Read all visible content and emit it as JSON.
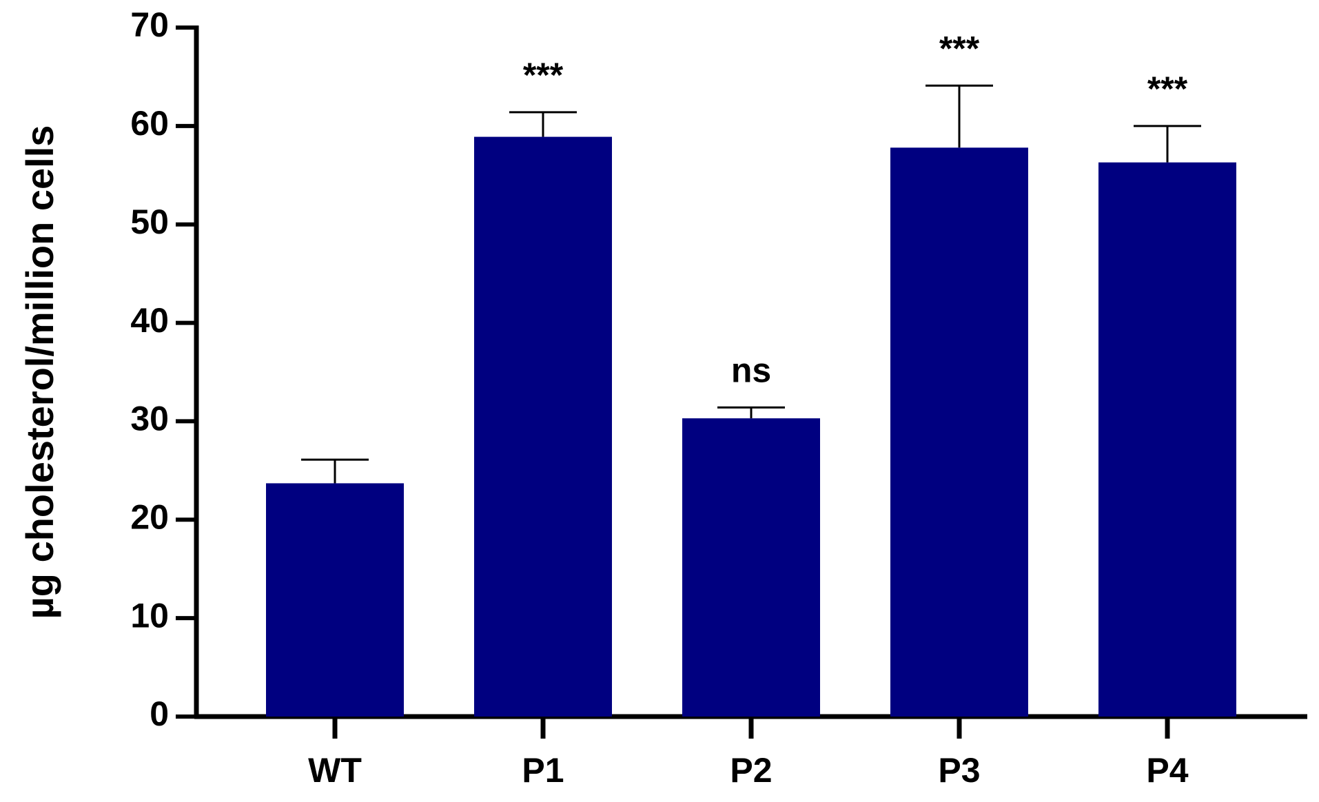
{
  "chart_data": {
    "type": "bar",
    "y_label": "µg cholesterol/million cells",
    "categories": [
      "WT",
      "P1",
      "P2",
      "P3",
      "P4"
    ],
    "values": [
      23.7,
      58.9,
      30.3,
      57.8,
      56.3
    ],
    "errors": [
      2.4,
      2.5,
      1.1,
      6.3,
      3.7
    ],
    "annotations": [
      null,
      "***",
      "ns",
      "***",
      "***"
    ],
    "color": "#000080",
    "ylim": [
      0,
      70
    ],
    "yticks": [
      0,
      10,
      20,
      30,
      40,
      50,
      60,
      70
    ],
    "grid": false
  }
}
